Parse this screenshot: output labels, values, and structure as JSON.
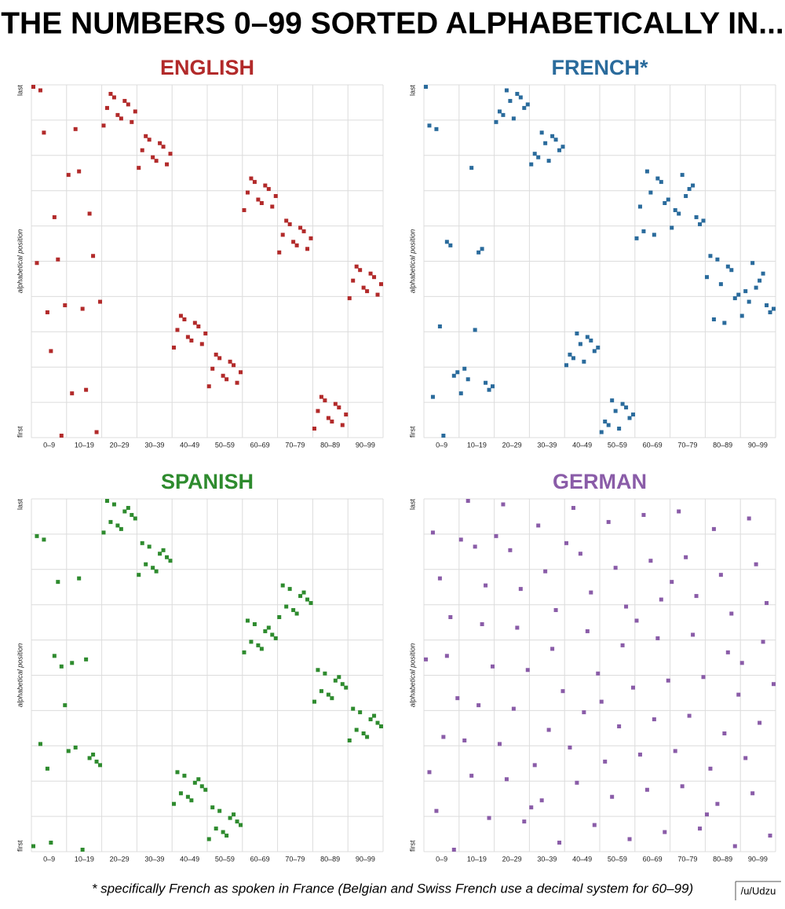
{
  "title": "THE NUMBERS 0–99 SORTED ALPHABETICALLY IN...",
  "footnote": "* specifically French as spoken in France (Belgian and Swiss French use a decimal system for 60–99)",
  "credit": "/u/Udzu",
  "chart_data": [
    {
      "type": "scatter",
      "title": "ENGLISH",
      "ylabel": "alphabetical position",
      "x": [
        0,
        1,
        2,
        3,
        4,
        5,
        6,
        7,
        8,
        9,
        10,
        11,
        12,
        13,
        14,
        15,
        16,
        17,
        18,
        19,
        20,
        21,
        22,
        23,
        24,
        25,
        26,
        27,
        28,
        29,
        30,
        31,
        32,
        33,
        34,
        35,
        36,
        37,
        38,
        39,
        40,
        41,
        42,
        43,
        44,
        45,
        46,
        47,
        48,
        49,
        50,
        51,
        52,
        53,
        54,
        55,
        56,
        57,
        58,
        59,
        60,
        61,
        62,
        63,
        64,
        65,
        66,
        67,
        68,
        69,
        70,
        71,
        72,
        73,
        74,
        75,
        76,
        77,
        78,
        79,
        80,
        81,
        82,
        83,
        84,
        85,
        86,
        87,
        88,
        89,
        90,
        91,
        92,
        93,
        94,
        95,
        96,
        97,
        98,
        99
      ],
      "series": [
        {
          "color": "#b22a2a",
          "values": [
            99,
            49,
            98,
            86,
            35,
            24,
            62,
            50,
            0,
            37,
            74,
            12,
            87,
            75,
            36,
            13,
            63,
            51,
            1,
            38,
            88,
            93,
            97,
            96,
            91,
            90,
            95,
            94,
            89,
            92,
            76,
            81,
            85,
            84,
            79,
            78,
            83,
            82,
            77,
            80,
            25,
            30,
            34,
            33,
            28,
            27,
            32,
            31,
            26,
            29,
            14,
            19,
            23,
            22,
            17,
            16,
            21,
            20,
            15,
            18,
            64,
            69,
            73,
            72,
            67,
            66,
            71,
            70,
            65,
            68,
            52,
            57,
            61,
            60,
            55,
            54,
            59,
            58,
            53,
            56,
            2,
            7,
            11,
            10,
            5,
            4,
            9,
            8,
            3,
            6,
            39,
            44,
            48,
            47,
            42,
            41,
            46,
            45,
            40,
            43
          ]
        }
      ],
      "xlim": [
        0,
        99
      ],
      "ylim": [
        0,
        99
      ],
      "xticks": [
        {
          "value": 4.5,
          "label": "0–9"
        },
        {
          "value": 14.5,
          "label": "10–19"
        },
        {
          "value": 24.5,
          "label": "20–29"
        },
        {
          "value": 34.5,
          "label": "30–39"
        },
        {
          "value": 44.5,
          "label": "40–49"
        },
        {
          "value": 54.5,
          "label": "50–59"
        },
        {
          "value": 64.5,
          "label": "60–69"
        },
        {
          "value": 74.5,
          "label": "70–79"
        },
        {
          "value": 84.5,
          "label": "80–89"
        },
        {
          "value": 94.5,
          "label": "90–99"
        }
      ],
      "yticks": [
        {
          "value": 0,
          "label": "first"
        },
        {
          "value": 99,
          "label": "last"
        }
      ],
      "grid": true
    },
    {
      "type": "scatter",
      "title": "FRENCH*",
      "ylabel": "alphabetical position",
      "x": [
        0,
        1,
        2,
        3,
        4,
        5,
        6,
        7,
        8,
        9,
        10,
        11,
        12,
        13,
        14,
        15,
        16,
        17,
        18,
        19,
        20,
        21,
        22,
        23,
        24,
        25,
        26,
        27,
        28,
        29,
        30,
        31,
        32,
        33,
        34,
        35,
        36,
        37,
        38,
        39,
        40,
        41,
        42,
        43,
        44,
        45,
        46,
        47,
        48,
        49,
        50,
        51,
        52,
        53,
        54,
        55,
        56,
        57,
        58,
        59,
        60,
        61,
        62,
        63,
        64,
        65,
        66,
        67,
        68,
        69,
        70,
        71,
        72,
        73,
        74,
        75,
        76,
        77,
        78,
        79,
        80,
        81,
        82,
        83,
        84,
        85,
        86,
        87,
        88,
        89,
        90,
        91,
        92,
        93,
        94,
        95,
        96,
        97,
        98,
        99
      ],
      "series": [
        {
          "color": "#2a6b9c",
          "values": [
            99,
            88,
            11,
            87,
            31,
            0,
            55,
            54,
            17,
            18,
            12,
            19,
            16,
            76,
            30,
            52,
            53,
            15,
            13,
            14,
            89,
            92,
            91,
            98,
            95,
            90,
            97,
            96,
            93,
            94,
            77,
            80,
            79,
            86,
            83,
            78,
            85,
            84,
            81,
            82,
            20,
            23,
            22,
            29,
            26,
            21,
            28,
            27,
            24,
            25,
            1,
            4,
            3,
            10,
            7,
            2,
            9,
            8,
            5,
            6,
            56,
            65,
            58,
            75,
            69,
            57,
            73,
            72,
            66,
            67,
            59,
            64,
            63,
            74,
            68,
            70,
            71,
            62,
            60,
            61,
            45,
            51,
            33,
            50,
            43,
            32,
            48,
            47,
            39,
            40,
            34,
            41,
            38,
            49,
            42,
            44,
            46,
            37,
            35,
            36
          ]
        }
      ],
      "xlim": [
        0,
        99
      ],
      "ylim": [
        0,
        99
      ],
      "xticks": [
        {
          "value": 4.5,
          "label": "0–9"
        },
        {
          "value": 14.5,
          "label": "10–19"
        },
        {
          "value": 24.5,
          "label": "20–29"
        },
        {
          "value": 34.5,
          "label": "30–39"
        },
        {
          "value": 44.5,
          "label": "40–49"
        },
        {
          "value": 54.5,
          "label": "50–59"
        },
        {
          "value": 64.5,
          "label": "60–69"
        },
        {
          "value": 74.5,
          "label": "70–79"
        },
        {
          "value": 84.5,
          "label": "80–89"
        },
        {
          "value": 94.5,
          "label": "90–99"
        }
      ],
      "yticks": [
        {
          "value": 0,
          "label": "first"
        },
        {
          "value": 99,
          "label": "last"
        }
      ],
      "grid": true
    },
    {
      "type": "scatter",
      "title": "SPANISH",
      "ylabel": "alphabetical position",
      "x": [
        0,
        1,
        2,
        3,
        4,
        5,
        6,
        7,
        8,
        9,
        10,
        11,
        12,
        13,
        14,
        15,
        16,
        17,
        18,
        19,
        20,
        21,
        22,
        23,
        24,
        25,
        26,
        27,
        28,
        29,
        30,
        31,
        32,
        33,
        34,
        35,
        36,
        37,
        38,
        39,
        40,
        41,
        42,
        43,
        44,
        45,
        46,
        47,
        48,
        49,
        50,
        51,
        52,
        53,
        54,
        55,
        56,
        57,
        58,
        59,
        60,
        61,
        62,
        63,
        64,
        65,
        66,
        67,
        68,
        69,
        70,
        71,
        72,
        73,
        74,
        75,
        76,
        77,
        78,
        79,
        80,
        81,
        82,
        83,
        84,
        85,
        86,
        87,
        88,
        89,
        90,
        91,
        92,
        93,
        94,
        95,
        96,
        97,
        98,
        99
      ],
      "series": [
        {
          "color": "#2e8b2e",
          "values": [
            1,
            89,
            30,
            88,
            23,
            2,
            55,
            76,
            52,
            41,
            28,
            53,
            29,
            77,
            0,
            54,
            26,
            27,
            25,
            24,
            90,
            99,
            93,
            98,
            92,
            91,
            96,
            97,
            95,
            94,
            78,
            87,
            81,
            86,
            80,
            79,
            84,
            85,
            83,
            82,
            13,
            22,
            16,
            21,
            15,
            14,
            19,
            20,
            18,
            17,
            3,
            12,
            6,
            11,
            5,
            4,
            9,
            10,
            8,
            7,
            56,
            65,
            59,
            64,
            58,
            57,
            62,
            63,
            61,
            60,
            66,
            75,
            69,
            74,
            68,
            67,
            72,
            73,
            71,
            70,
            42,
            51,
            45,
            50,
            44,
            43,
            48,
            49,
            47,
            46,
            31,
            40,
            34,
            39,
            33,
            32,
            37,
            38,
            36,
            35
          ]
        }
      ],
      "xlim": [
        0,
        99
      ],
      "ylim": [
        0,
        99
      ],
      "xticks": [
        {
          "value": 4.5,
          "label": "0–9"
        },
        {
          "value": 14.5,
          "label": "10–19"
        },
        {
          "value": 24.5,
          "label": "20–29"
        },
        {
          "value": 34.5,
          "label": "30–39"
        },
        {
          "value": 44.5,
          "label": "40–49"
        },
        {
          "value": 54.5,
          "label": "50–59"
        },
        {
          "value": 64.5,
          "label": "60–69"
        },
        {
          "value": 74.5,
          "label": "70–79"
        },
        {
          "value": 84.5,
          "label": "80–89"
        },
        {
          "value": 94.5,
          "label": "90–99"
        }
      ],
      "yticks": [
        {
          "value": 0,
          "label": "first"
        },
        {
          "value": 99,
          "label": "last"
        }
      ],
      "grid": true
    },
    {
      "type": "scatter",
      "title": "GERMAN",
      "ylabel": "alphabetical position",
      "x": [
        0,
        1,
        2,
        3,
        4,
        5,
        6,
        7,
        8,
        9,
        10,
        11,
        12,
        13,
        14,
        15,
        16,
        17,
        18,
        19,
        20,
        21,
        22,
        23,
        24,
        25,
        26,
        27,
        28,
        29,
        30,
        31,
        32,
        33,
        34,
        35,
        36,
        37,
        38,
        39,
        40,
        41,
        42,
        43,
        44,
        45,
        46,
        47,
        48,
        49,
        50,
        51,
        52,
        53,
        54,
        55,
        56,
        57,
        58,
        59,
        60,
        61,
        62,
        63,
        64,
        65,
        66,
        67,
        68,
        69,
        70,
        71,
        72,
        73,
        74,
        75,
        76,
        77,
        78,
        79,
        80,
        81,
        82,
        83,
        84,
        85,
        86,
        87,
        88,
        89,
        90,
        91,
        92,
        93,
        94,
        95,
        96,
        97,
        98,
        99
      ],
      "series": [
        {
          "color": "#8a5ca8",
          "values": [
            54,
            22,
            90,
            11,
            77,
            32,
            55,
            66,
            0,
            43,
            88,
            31,
            99,
            21,
            86,
            41,
            64,
            75,
            9,
            52,
            89,
            30,
            98,
            20,
            85,
            40,
            63,
            74,
            8,
            51,
            12,
            24,
            92,
            14,
            79,
            34,
            57,
            68,
            2,
            45,
            87,
            29,
            97,
            19,
            84,
            39,
            62,
            73,
            7,
            50,
            42,
            25,
            93,
            15,
            80,
            35,
            58,
            69,
            3,
            46,
            65,
            27,
            95,
            17,
            82,
            37,
            60,
            71,
            5,
            48,
            76,
            28,
            96,
            18,
            83,
            38,
            61,
            72,
            6,
            49,
            10,
            23,
            91,
            13,
            78,
            33,
            56,
            67,
            1,
            44,
            53,
            26,
            94,
            16,
            81,
            36,
            59,
            70,
            4,
            47
          ]
        }
      ],
      "xlim": [
        0,
        99
      ],
      "ylim": [
        0,
        99
      ],
      "xticks": [
        {
          "value": 4.5,
          "label": "0–9"
        },
        {
          "value": 14.5,
          "label": "10–19"
        },
        {
          "value": 24.5,
          "label": "20–29"
        },
        {
          "value": 34.5,
          "label": "30–39"
        },
        {
          "value": 44.5,
          "label": "40–49"
        },
        {
          "value": 54.5,
          "label": "50–59"
        },
        {
          "value": 64.5,
          "label": "60–69"
        },
        {
          "value": 74.5,
          "label": "70–79"
        },
        {
          "value": 84.5,
          "label": "80–89"
        },
        {
          "value": 94.5,
          "label": "90–99"
        }
      ],
      "yticks": [
        {
          "value": 0,
          "label": "first"
        },
        {
          "value": 99,
          "label": "last"
        }
      ],
      "grid": true
    }
  ]
}
